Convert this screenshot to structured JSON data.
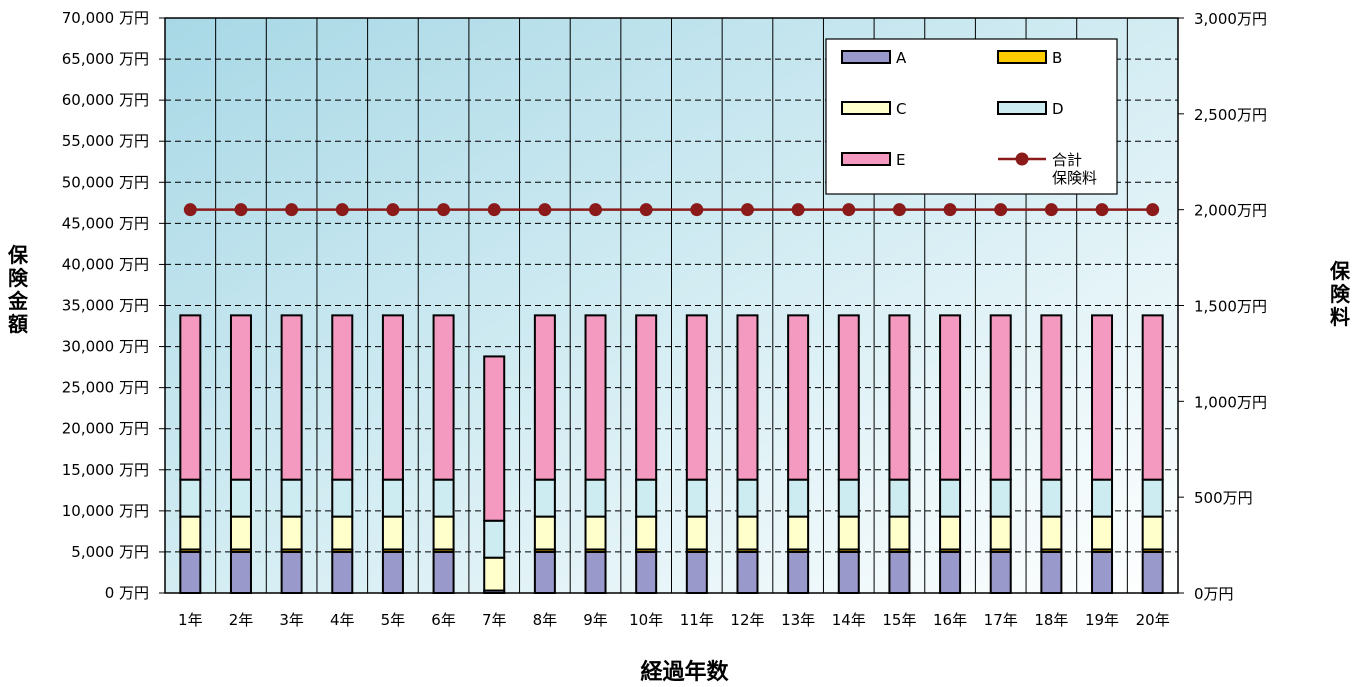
{
  "chart_data": {
    "type": "bar",
    "stacked": true,
    "categories": [
      "1年",
      "2年",
      "3年",
      "4年",
      "5年",
      "6年",
      "7年",
      "8年",
      "9年",
      "10年",
      "11年",
      "12年",
      "13年",
      "14年",
      "15年",
      "16年",
      "17年",
      "18年",
      "19年",
      "20年"
    ],
    "series": [
      {
        "name": "A",
        "color": "#9999cc",
        "values": [
          5000,
          5000,
          5000,
          5000,
          5000,
          5000,
          300,
          5000,
          5000,
          5000,
          5000,
          5000,
          5000,
          5000,
          5000,
          5000,
          5000,
          5000,
          5000,
          5000
        ]
      },
      {
        "name": "B",
        "color": "#ffcc00",
        "values": [
          300,
          300,
          300,
          300,
          300,
          300,
          0,
          300,
          300,
          300,
          300,
          300,
          300,
          300,
          300,
          300,
          300,
          300,
          300,
          300
        ]
      },
      {
        "name": "C",
        "color": "#ffffcc",
        "values": [
          4000,
          4000,
          4000,
          4000,
          4000,
          4000,
          4000,
          4000,
          4000,
          4000,
          4000,
          4000,
          4000,
          4000,
          4000,
          4000,
          4000,
          4000,
          4000,
          4000
        ]
      },
      {
        "name": "D",
        "color": "#ccecf2",
        "values": [
          4500,
          4500,
          4500,
          4500,
          4500,
          4500,
          4500,
          4500,
          4500,
          4500,
          4500,
          4500,
          4500,
          4500,
          4500,
          4500,
          4500,
          4500,
          4500,
          4500
        ]
      },
      {
        "name": "E",
        "color": "#f49ac1",
        "values": [
          20000,
          20000,
          20000,
          20000,
          20000,
          20000,
          20000,
          20000,
          20000,
          20000,
          20000,
          20000,
          20000,
          20000,
          20000,
          20000,
          20000,
          20000,
          20000,
          20000
        ]
      }
    ],
    "line": {
      "name": "合計保険料",
      "color": "#8b1a1a",
      "axis": "right",
      "values": [
        2000,
        2000,
        2000,
        2000,
        2000,
        2000,
        2000,
        2000,
        2000,
        2000,
        2000,
        2000,
        2000,
        2000,
        2000,
        2000,
        2000,
        2000,
        2000,
        2000
      ]
    },
    "xlabel": "経過年数",
    "ylabel": "保険金額",
    "y2label": "保険料",
    "ylim": [
      0,
      70000
    ],
    "y2lim": [
      0,
      3000
    ],
    "yticks": [
      0,
      5000,
      10000,
      15000,
      20000,
      25000,
      30000,
      35000,
      40000,
      45000,
      50000,
      55000,
      60000,
      65000,
      70000
    ],
    "ytick_labels": [
      "0 万円",
      "5,000 万円",
      "10,000 万円",
      "15,000 万円",
      "20,000 万円",
      "25,000 万円",
      "30,000 万円",
      "35,000 万円",
      "40,000 万円",
      "45,000 万円",
      "50,000 万円",
      "55,000 万円",
      "60,000 万円",
      "65,000 万円",
      "70,000 万円"
    ],
    "y2ticks": [
      0,
      500,
      1000,
      1500,
      2000,
      2500,
      3000
    ],
    "y2tick_labels": [
      "0万円",
      "500万円",
      "1,000万円",
      "1,500万円",
      "2,000万円",
      "2,500万円",
      "3,000万円"
    ],
    "legend": {
      "position": "top-right",
      "line_label_lines": [
        "合計",
        "保険料"
      ]
    },
    "grid": true
  }
}
